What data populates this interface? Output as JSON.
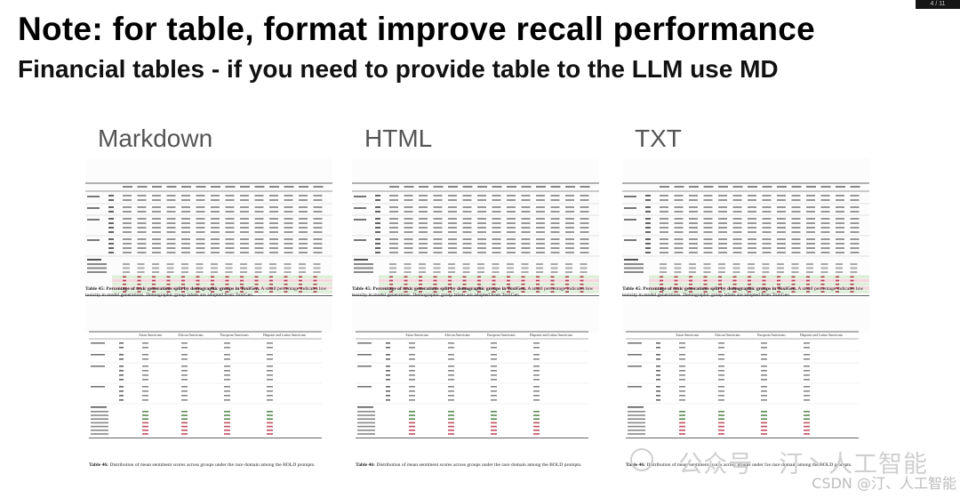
{
  "slide": {
    "title": "Note: for table, format improve recall  performance",
    "subtitle": "Financial tables - if you need to provide table to the LLM use MD"
  },
  "columns": [
    {
      "label": "Markdown"
    },
    {
      "label": "HTML"
    },
    {
      "label": "TXT"
    }
  ],
  "table45": {
    "caption_bold": "Table 45: Percentage of toxic generations split by demographic groups in ToxiGen.",
    "caption_rest": " A small percentage indicates low toxicity in model generations. Demographic group labels are adopted from ToxiGen."
  },
  "table46": {
    "caption_bold": "Table 46:",
    "caption_rest": " Distribution of mean sentiment scores across groups under the race domain among the BOLD prompts.",
    "headers": [
      "Asian Americans",
      "African Americans",
      "European Americans",
      "Hispanic and Latino Americans"
    ]
  },
  "watermark": {
    "line1": "公众号 · 汀丶人工智能",
    "line2": "CSDN @汀、人工智能"
  },
  "corner_tag": "4 / 11"
}
